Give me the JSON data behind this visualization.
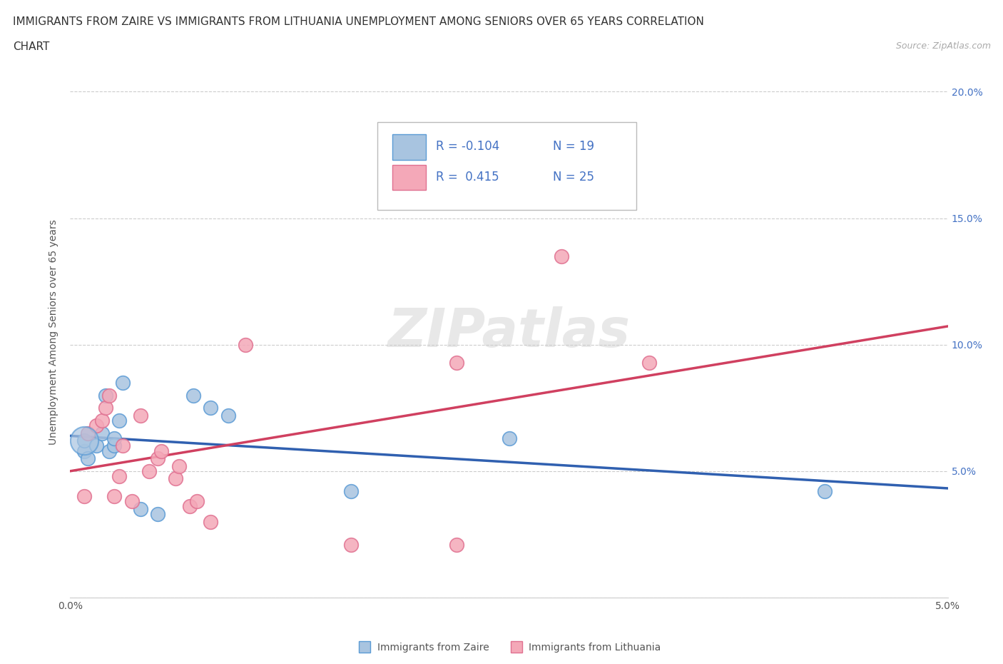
{
  "title_line1": "IMMIGRANTS FROM ZAIRE VS IMMIGRANTS FROM LITHUANIA UNEMPLOYMENT AMONG SENIORS OVER 65 YEARS CORRELATION",
  "title_line2": "CHART",
  "source": "Source: ZipAtlas.com",
  "ylabel": "Unemployment Among Seniors over 65 years",
  "xlim": [
    0.0,
    0.05
  ],
  "ylim": [
    0.0,
    0.21
  ],
  "xticks": [
    0.0,
    0.005,
    0.01,
    0.015,
    0.02,
    0.025,
    0.03,
    0.035,
    0.04,
    0.045,
    0.05
  ],
  "xticklabels": [
    "0.0%",
    "",
    "",
    "",
    "",
    "",
    "",
    "",
    "",
    "",
    "5.0%"
  ],
  "yticks": [
    0.0,
    0.05,
    0.1,
    0.15,
    0.2
  ],
  "yticklabels": [
    "",
    "5.0%",
    "10.0%",
    "15.0%",
    "20.0%"
  ],
  "zaire_color": "#a8c4e0",
  "lithuania_color": "#f4a8b8",
  "zaire_edge_color": "#5b9bd5",
  "lithuania_edge_color": "#e07090",
  "zaire_line_color": "#3060b0",
  "lithuania_line_color": "#d04060",
  "legend_R_zaire": "-0.104",
  "legend_N_zaire": "19",
  "legend_R_lithuania": "0.415",
  "legend_N_lithuania": "25",
  "r_color": "#4472c4",
  "watermark": "ZIPatlas",
  "zaire_x": [
    0.0008,
    0.0008,
    0.001,
    0.0015,
    0.0018,
    0.002,
    0.0022,
    0.0025,
    0.0025,
    0.0028,
    0.003,
    0.004,
    0.005,
    0.007,
    0.008,
    0.009,
    0.016,
    0.025,
    0.043
  ],
  "zaire_y": [
    0.058,
    0.062,
    0.055,
    0.06,
    0.065,
    0.08,
    0.058,
    0.06,
    0.063,
    0.07,
    0.085,
    0.035,
    0.033,
    0.08,
    0.075,
    0.072,
    0.042,
    0.063,
    0.042
  ],
  "lithuania_x": [
    0.0008,
    0.001,
    0.0015,
    0.0018,
    0.002,
    0.0022,
    0.0025,
    0.0028,
    0.003,
    0.0035,
    0.004,
    0.0045,
    0.005,
    0.0052,
    0.006,
    0.0062,
    0.0068,
    0.0072,
    0.008,
    0.01,
    0.016,
    0.022,
    0.022,
    0.028,
    0.033
  ],
  "lithuania_y": [
    0.04,
    0.065,
    0.068,
    0.07,
    0.075,
    0.08,
    0.04,
    0.048,
    0.06,
    0.038,
    0.072,
    0.05,
    0.055,
    0.058,
    0.047,
    0.052,
    0.036,
    0.038,
    0.03,
    0.1,
    0.021,
    0.021,
    0.093,
    0.135,
    0.093
  ],
  "background_color": "#ffffff",
  "grid_color": "#cccccc",
  "title_fontsize": 11,
  "axis_fontsize": 10,
  "tick_fontsize": 10,
  "legend_fontsize": 11
}
